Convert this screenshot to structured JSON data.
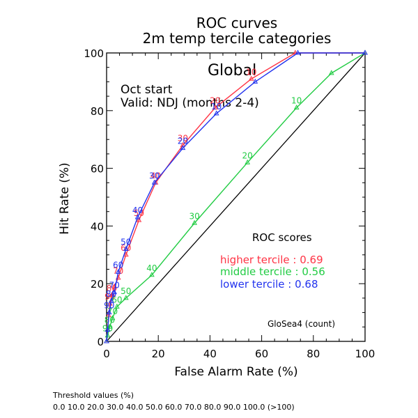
{
  "chart_data": {
    "type": "line",
    "title": "ROC curves",
    "subtitle": "2m temp tercile categories",
    "region": "Global",
    "start_label": "Oct start",
    "valid_label": "Valid: NDJ (months 2-4)",
    "xlabel": "False Alarm Rate (%)",
    "ylabel": "Hit Rate (%)",
    "xlim": [
      0,
      100
    ],
    "ylim": [
      0,
      100
    ],
    "x_ticks": [
      "0",
      "20",
      "40",
      "60",
      "80",
      "100"
    ],
    "y_ticks": [
      "0",
      "20",
      "40",
      "60",
      "80",
      "100"
    ],
    "grid": false,
    "diagonal": true,
    "scores_title": "ROC scores",
    "model_label": "GloSea4 (count)",
    "series": [
      {
        "name": "higher tercile",
        "score_label": "higher tercile : 0.69",
        "color": "#ff3344",
        "x": [
          0,
          0.4,
          0.8,
          1.3,
          2,
          3,
          4.5,
          7.5,
          12.5,
          19,
          29.5,
          42,
          56,
          73,
          100
        ],
        "y": [
          0,
          4,
          9,
          13,
          16,
          19,
          22,
          30,
          42,
          55,
          68,
          81,
          91,
          100,
          100
        ],
        "thresholds": [
          "",
          "",
          "",
          "90",
          "80",
          "",
          "70",
          "60",
          "50",
          "40",
          "30",
          "20",
          "10",
          "",
          ""
        ]
      },
      {
        "name": "middle tercile",
        "score_label": "middle tercile : 0.56",
        "color": "#22cc44",
        "x": [
          0,
          0.4,
          1.2,
          2.3,
          4,
          7.5,
          17.5,
          34,
          54.5,
          73.5,
          87,
          100
        ],
        "y": [
          0,
          2,
          5,
          8,
          12,
          15,
          23,
          41,
          62,
          81,
          93,
          100
        ],
        "thresholds": [
          "",
          "90",
          "80",
          "70",
          "60",
          "50",
          "40",
          "30",
          "20",
          "10",
          "",
          ""
        ]
      },
      {
        "name": "lower tercile",
        "score_label": "lower tercile : 0.68",
        "color": "#2233ee",
        "x": [
          0,
          0.4,
          1,
          1.8,
          3,
          4.5,
          7.5,
          12,
          18.5,
          29.5,
          42.5,
          57.5,
          74,
          100
        ],
        "y": [
          0,
          4,
          10,
          14,
          17,
          24,
          32,
          43,
          55,
          67,
          79,
          90,
          100,
          100
        ],
        "thresholds": [
          "",
          "",
          "90",
          "80",
          "70",
          "60",
          "50",
          "40",
          "30",
          "20",
          "10",
          "",
          "",
          ""
        ]
      }
    ],
    "threshold_caption": "Threshold values (%)",
    "threshold_values": "0.0 10.0 20.0 30.0 40.0 50.0 60.0 70.0 80.0 90.0 100.0 (>100)"
  }
}
